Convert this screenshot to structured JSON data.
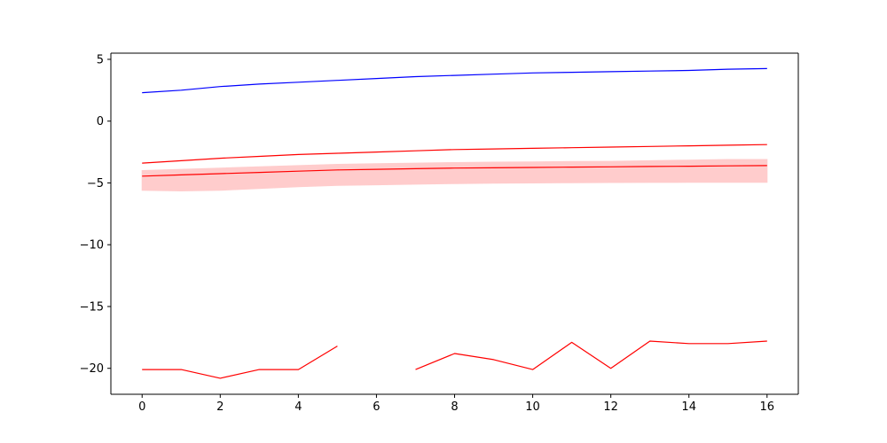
{
  "chart_data": {
    "type": "line",
    "title": "",
    "xlabel": "",
    "ylabel": "",
    "xlim": [
      -0.8,
      16.8
    ],
    "ylim": [
      -22.1,
      5.5
    ],
    "grid": false,
    "legend": "none",
    "xticks": [
      0,
      2,
      4,
      6,
      8,
      10,
      12,
      14,
      16
    ],
    "xtick_labels": [
      "0",
      "2",
      "4",
      "6",
      "8",
      "10",
      "12",
      "14",
      "16"
    ],
    "yticks": [
      5,
      0,
      -5,
      -10,
      -15,
      -20
    ],
    "ytick_labels": [
      "5",
      "0",
      "−5",
      "−10",
      "−15",
      "−20"
    ],
    "x": [
      0,
      1,
      2,
      3,
      4,
      5,
      6,
      7,
      8,
      9,
      10,
      11,
      12,
      13,
      14,
      15,
      16
    ],
    "series": [
      {
        "color": "#0000ff",
        "values": [
          2.3,
          2.5,
          2.8,
          3.0,
          3.15,
          3.3,
          3.45,
          3.6,
          3.7,
          3.8,
          3.9,
          3.95,
          4.0,
          4.05,
          4.1,
          4.2,
          4.25
        ]
      },
      {
        "color": "#ff0000",
        "values": [
          -3.4,
          -3.2,
          -3.0,
          -2.85,
          -2.7,
          -2.6,
          -2.5,
          -2.4,
          -2.3,
          -2.25,
          -2.2,
          -2.15,
          -2.1,
          -2.05,
          -2.0,
          -1.95,
          -1.9
        ]
      },
      {
        "color": "#ff0000",
        "values": [
          -4.45,
          -4.35,
          -4.25,
          -4.15,
          -4.05,
          -3.95,
          -3.9,
          -3.85,
          -3.8,
          -3.78,
          -3.75,
          -3.72,
          -3.7,
          -3.67,
          -3.65,
          -3.62,
          -3.6
        ],
        "band_lower": [
          -5.6,
          -5.65,
          -5.6,
          -5.45,
          -5.3,
          -5.2,
          -5.15,
          -5.1,
          -5.05,
          -5.02,
          -5.0,
          -4.98,
          -4.97,
          -4.96,
          -4.95,
          -4.95,
          -4.95
        ],
        "band_upper": [
          -4.0,
          -3.9,
          -3.8,
          -3.7,
          -3.6,
          -3.5,
          -3.45,
          -3.4,
          -3.35,
          -3.32,
          -3.3,
          -3.27,
          -3.25,
          -3.2,
          -3.15,
          -3.1,
          -3.1
        ],
        "band_color": "#ffcccc"
      },
      {
        "color": "#ff0000",
        "values": [
          -20.1,
          -20.1,
          -20.8,
          -20.1,
          -20.1,
          -18.2,
          null,
          -20.1,
          -18.8,
          -19.3,
          -20.1,
          -17.9,
          -20.0,
          -17.8,
          -18.0,
          -18.0,
          -17.8
        ]
      }
    ],
    "colors": {
      "axis": "#000000",
      "background": "#ffffff"
    }
  }
}
